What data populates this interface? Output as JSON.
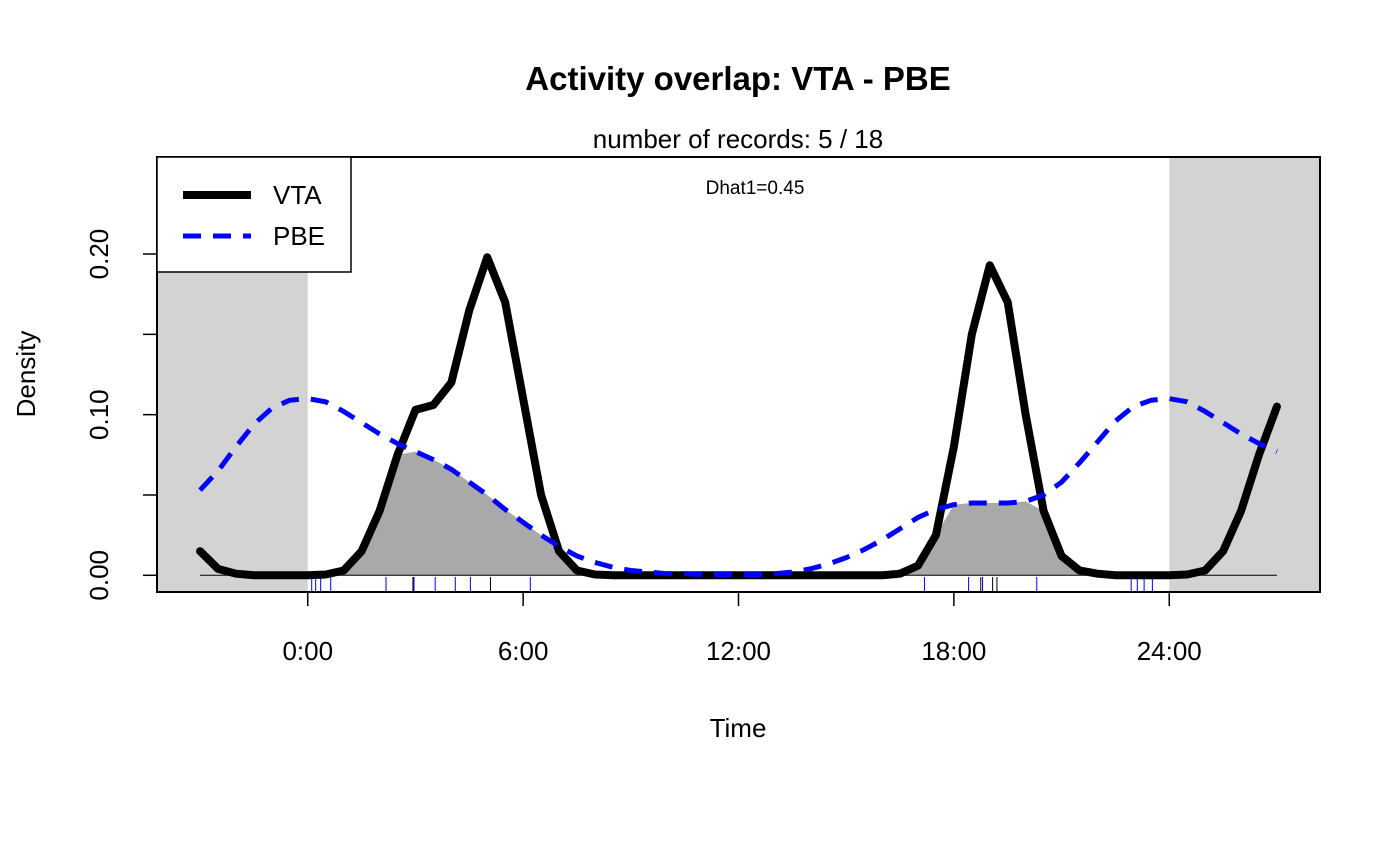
{
  "chart_data": {
    "type": "line",
    "title": "Activity overlap:  VTA - PBE",
    "subtitle": "number of records: 5 / 18",
    "annotation": "Dhat1=0.45",
    "xlabel": "Time",
    "ylabel": "Density",
    "xlim": [
      -4.2,
      28.2
    ],
    "ylim": [
      -0.0104,
      0.2604
    ],
    "xticks": [
      {
        "value": 0,
        "label": "0:00"
      },
      {
        "value": 6,
        "label": "6:00"
      },
      {
        "value": 12,
        "label": "12:00"
      },
      {
        "value": 18,
        "label": "18:00"
      },
      {
        "value": 24,
        "label": "24:00"
      }
    ],
    "yticks": [
      {
        "value": 0,
        "label": "0.00"
      },
      {
        "value": 0.1,
        "label": "0.10"
      },
      {
        "value": 0.2,
        "label": "0.20"
      }
    ],
    "yminorticks": [
      0.05,
      0.15
    ],
    "shade_outside": [
      0,
      24
    ],
    "shade_color": "#d3d3d3",
    "overlap_color": "#a9a9a9",
    "legend": "top-left",
    "x": [
      -3,
      -2.5,
      -2,
      -1.5,
      -1,
      -0.5,
      0,
      0.5,
      1,
      1.5,
      2,
      2.5,
      3,
      3.5,
      4,
      4.5,
      5,
      5.5,
      6,
      6.5,
      7,
      7.5,
      8,
      8.5,
      9,
      9.5,
      10,
      10.5,
      11,
      11.5,
      12,
      12.5,
      13,
      13.5,
      14,
      14.5,
      15,
      15.5,
      16,
      16.5,
      17,
      17.5,
      18,
      18.5,
      19,
      19.5,
      20,
      20.5,
      21,
      21.5,
      22,
      22.5,
      23,
      23.5,
      24,
      24.5,
      25,
      25.5,
      26,
      26.5,
      27
    ],
    "series": [
      {
        "name": "VTA",
        "color": "#000000",
        "dash": false,
        "values": [
          0.015,
          0.004,
          0.001,
          0,
          0,
          0,
          0,
          0.0005,
          0.003,
          0.015,
          0.04,
          0.075,
          0.103,
          0.106,
          0.12,
          0.165,
          0.198,
          0.17,
          0.11,
          0.05,
          0.015,
          0.003,
          0.0005,
          0,
          0,
          0,
          0,
          0,
          0,
          0,
          0,
          0,
          0,
          0,
          0,
          0,
          0,
          0,
          0,
          0.001,
          0.006,
          0.025,
          0.08,
          0.15,
          0.193,
          0.17,
          0.1,
          0.04,
          0.012,
          0.003,
          0.001,
          0,
          0,
          0,
          0,
          0.0005,
          0.003,
          0.015,
          0.04,
          0.075,
          0.105
        ],
        "records": [
          2.93,
          5.09,
          18.75,
          19.08,
          19.2
        ]
      },
      {
        "name": "PBE",
        "color": "#0000ff",
        "dash": true,
        "values": [
          0.053,
          0.065,
          0.08,
          0.094,
          0.104,
          0.109,
          0.11,
          0.108,
          0.102,
          0.095,
          0.088,
          0.082,
          0.077,
          0.072,
          0.066,
          0.058,
          0.05,
          0.041,
          0.033,
          0.025,
          0.018,
          0.012,
          0.008,
          0.005,
          0.003,
          0.002,
          0.001,
          0.001,
          0.0005,
          0.0005,
          0.0005,
          0.0005,
          0.001,
          0.002,
          0.004,
          0.007,
          0.011,
          0.016,
          0.022,
          0.029,
          0.036,
          0.041,
          0.044,
          0.045,
          0.045,
          0.045,
          0.046,
          0.05,
          0.058,
          0.07,
          0.083,
          0.096,
          0.105,
          0.109,
          0.11,
          0.108,
          0.102,
          0.095,
          0.088,
          0.082,
          0.077
        ],
        "records": [
          0.11,
          0.22,
          0.36,
          0.64,
          2.18,
          2.96,
          3.55,
          4.11,
          4.53,
          6.2,
          17.18,
          18.41,
          18.8,
          20.31,
          22.94,
          23.11,
          23.3,
          23.53
        ]
      }
    ]
  }
}
